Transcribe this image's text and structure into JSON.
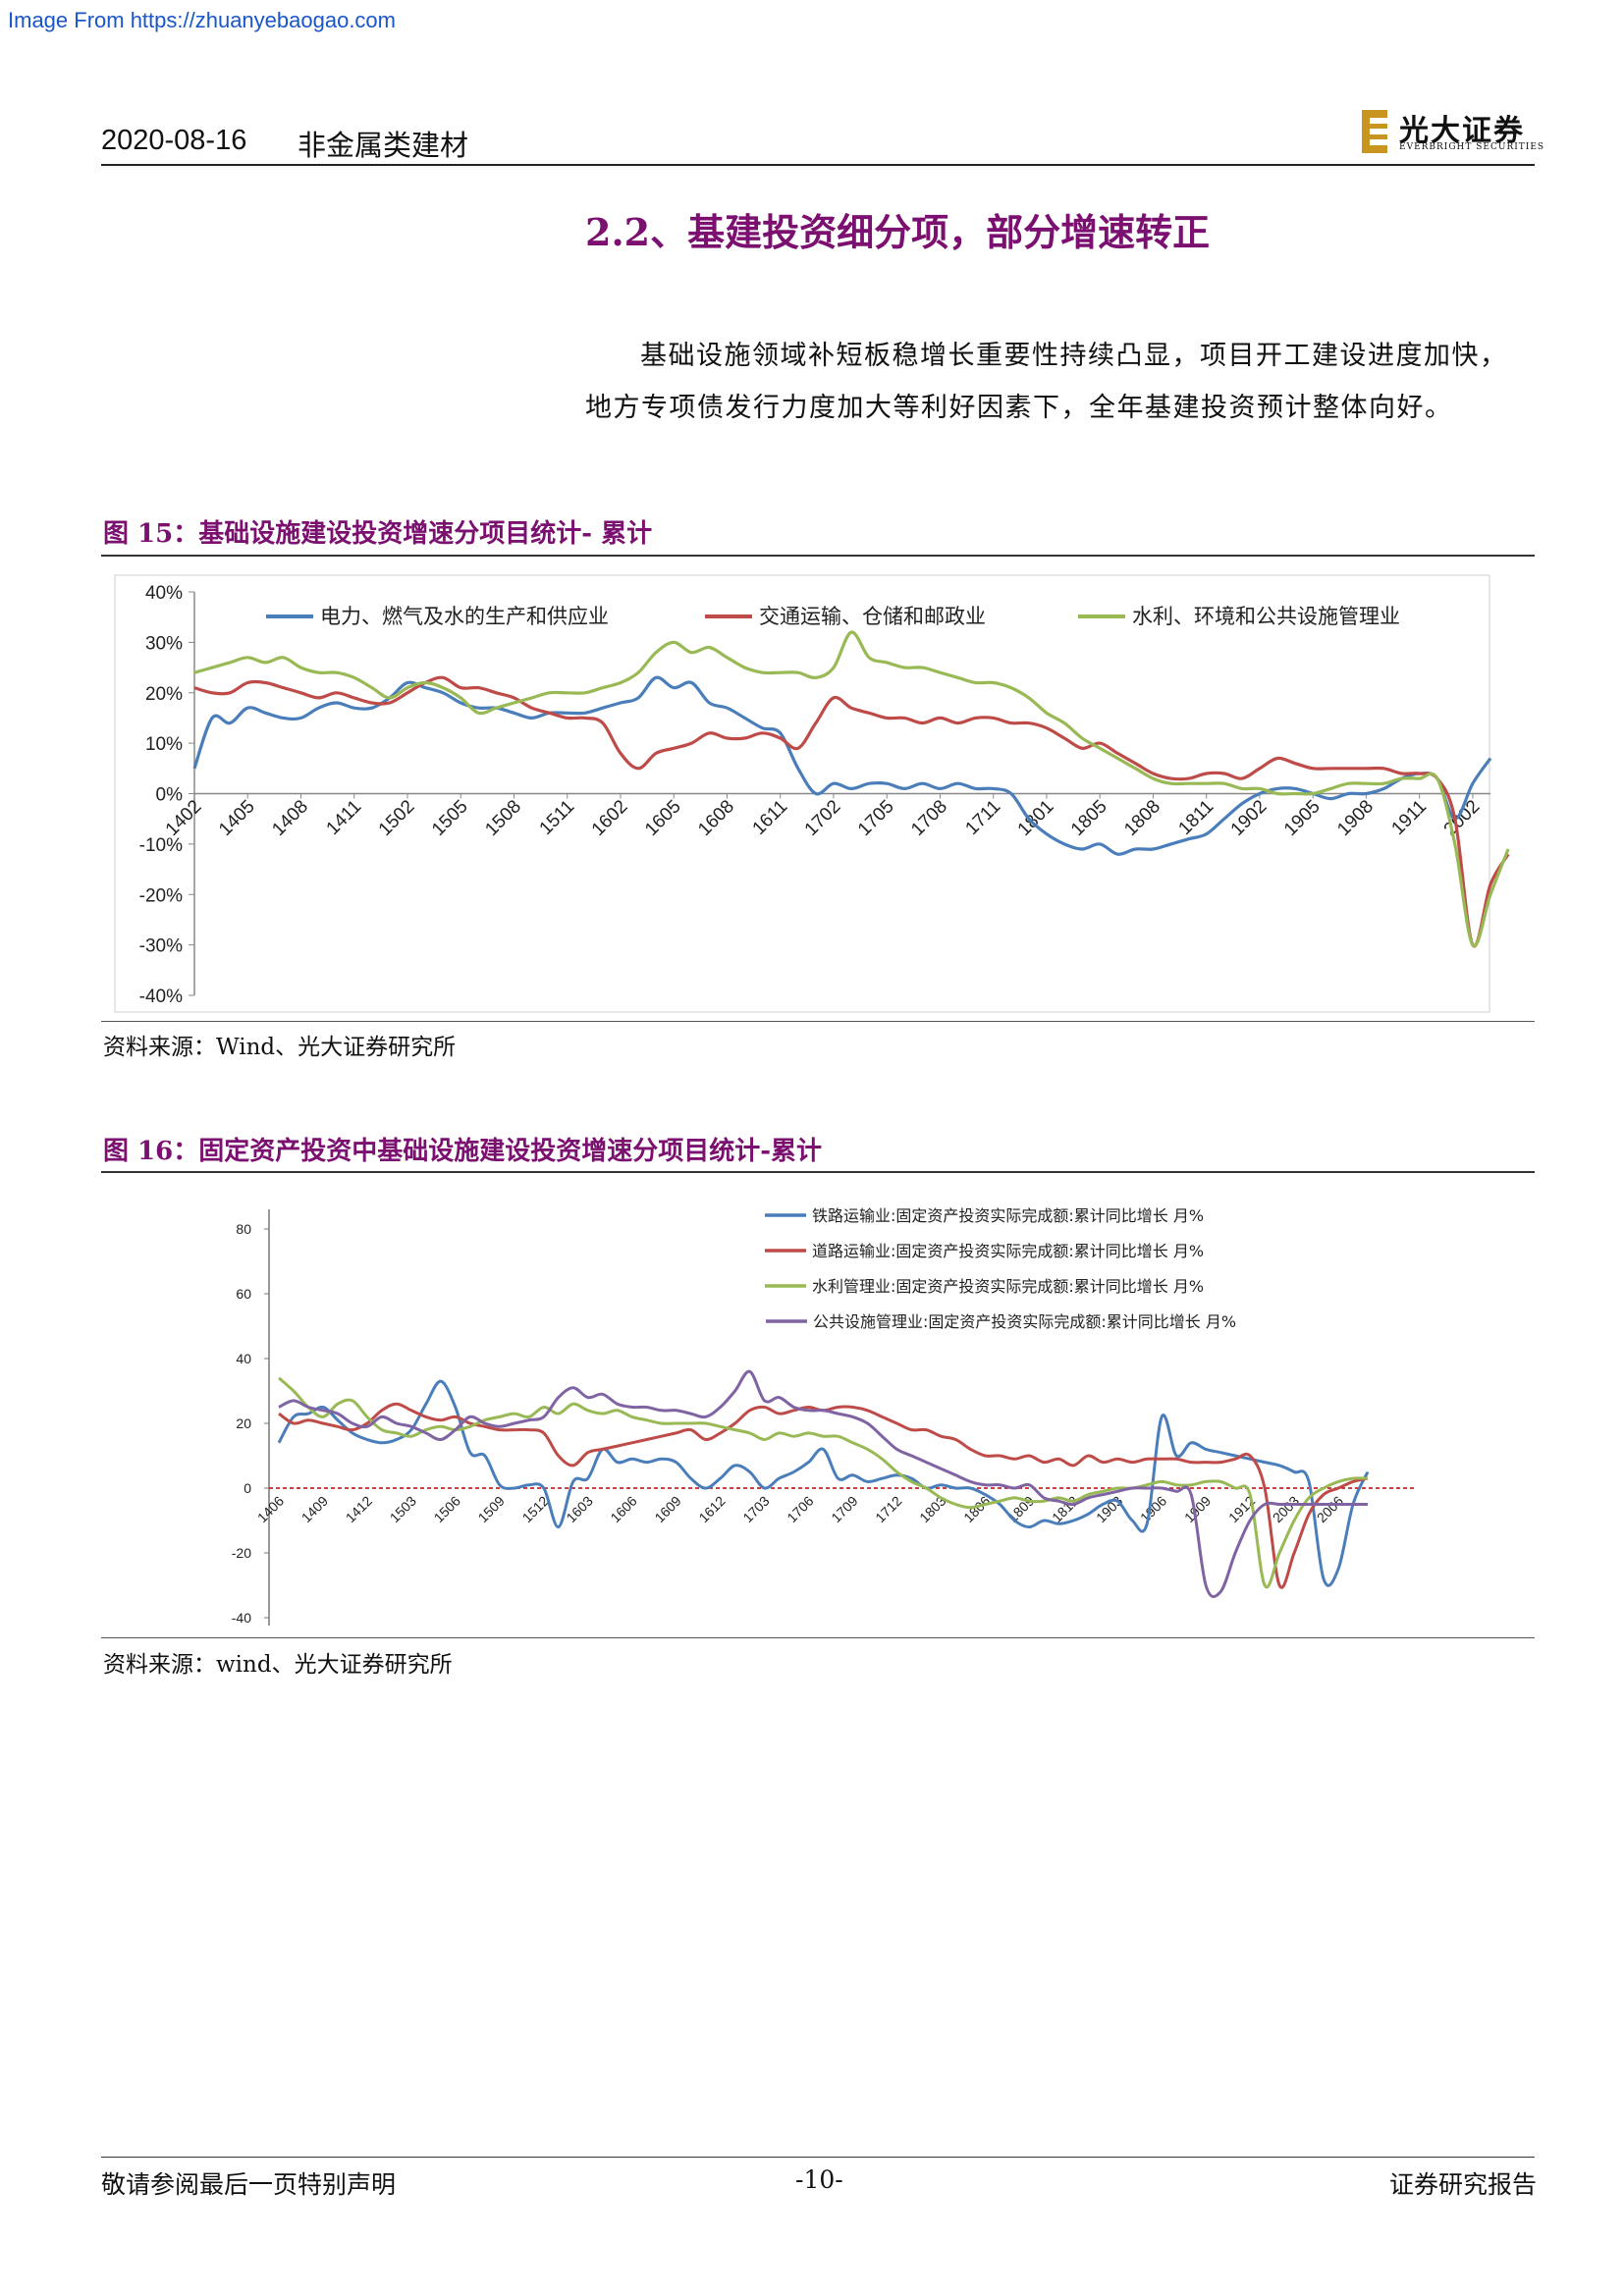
{
  "watermark": "Image From https://zhuanyebaogao.com",
  "header": {
    "date": "2020-08-16",
    "sector": "非金属类建材",
    "logo_cn": "光大证券",
    "logo_en": "EVERBRIGHT SECURITIES",
    "logo_color": "#c8961e"
  },
  "section": {
    "title": "2.2、基建投资细分项，部分增速转正",
    "para_line1": "基础设施领域补短板稳增长重要性持续凸显，项目开工建设进度加快，",
    "para_line2": "地方专项债发行力度加大等利好因素下，全年基建投资预计整体向好。"
  },
  "fig15": {
    "title": "图 15：基础设施建设投资增速分项目统计- 累计",
    "source": "资料来源：Wind、光大证券研究所"
  },
  "fig16": {
    "title": "图 16：固定资产投资中基础设施建设投资增速分项目统计-累计",
    "source": "资料来源：wind、光大证券研究所"
  },
  "footer": {
    "left": "敬请参阅最后一页特别声明",
    "page": "-10-",
    "right": "证券研究报告"
  },
  "chart_data": [
    {
      "type": "line",
      "y_ticks": [
        "40%",
        "30%",
        "20%",
        "10%",
        "0%",
        "-10%",
        "-20%",
        "-30%",
        "-40%"
      ],
      "ylim": [
        -40,
        40
      ],
      "x_ticks": [
        "1402",
        "1405",
        "1408",
        "1411",
        "1502",
        "1505",
        "1508",
        "1511",
        "1602",
        "1605",
        "1608",
        "1611",
        "1702",
        "1705",
        "1708",
        "1711",
        "1801",
        "1805",
        "1808",
        "1811",
        "1902",
        "1905",
        "1908",
        "1911",
        "2002"
      ],
      "legend_position": "top",
      "grid": false,
      "series": [
        {
          "name": "电力、燃气及水的生产和供应业",
          "color": "#4a7ebb",
          "values": [
            5,
            15,
            14,
            17,
            16,
            15,
            15,
            17,
            18,
            17,
            17,
            19,
            22,
            21,
            20,
            18,
            17,
            17,
            16,
            15,
            16,
            16,
            16,
            17,
            18,
            19,
            23,
            21,
            22,
            18,
            17,
            15,
            13,
            12,
            5,
            0,
            2,
            1,
            2,
            2,
            1,
            2,
            1,
            2,
            1,
            1,
            0,
            -5,
            -8,
            -10,
            -11,
            -10,
            -12,
            -11,
            -11,
            -10,
            -9,
            -8,
            -5,
            -2,
            0,
            1,
            1,
            0,
            -1,
            0,
            0,
            1,
            3,
            4,
            3,
            -5,
            2,
            7
          ]
        },
        {
          "name": "交通运输、仓储和邮政业",
          "color": "#be4b48",
          "values": [
            21,
            20,
            20,
            22,
            22,
            21,
            20,
            19,
            20,
            19,
            18,
            18,
            20,
            22,
            23,
            21,
            21,
            20,
            19,
            17,
            16,
            15,
            15,
            14,
            8,
            5,
            8,
            9,
            10,
            12,
            11,
            11,
            12,
            11,
            9,
            14,
            19,
            17,
            16,
            15,
            15,
            14,
            15,
            14,
            15,
            15,
            14,
            14,
            13,
            11,
            9,
            10,
            8,
            6,
            4,
            3,
            3,
            4,
            4,
            3,
            5,
            7,
            6,
            5,
            5,
            5,
            5,
            5,
            4,
            4,
            3,
            -5,
            -30,
            -18,
            -12
          ]
        },
        {
          "name": "水利、环境和公共设施管理业",
          "color": "#98b954",
          "values": [
            24,
            25,
            26,
            27,
            26,
            27,
            25,
            24,
            24,
            23,
            21,
            19,
            21,
            22,
            21,
            19,
            16,
            17,
            18,
            19,
            20,
            20,
            20,
            21,
            22,
            24,
            28,
            30,
            28,
            29,
            27,
            25,
            24,
            24,
            24,
            23,
            25,
            32,
            27,
            26,
            25,
            25,
            24,
            23,
            22,
            22,
            21,
            19,
            16,
            14,
            11,
            9,
            7,
            5,
            3,
            2,
            2,
            2,
            2,
            1,
            1,
            0,
            0,
            0,
            1,
            2,
            2,
            2,
            3,
            3,
            3,
            -10,
            -30,
            -20,
            -11
          ]
        }
      ]
    },
    {
      "type": "line",
      "y_ticks": [
        "80",
        "60",
        "40",
        "20",
        "0",
        "-20",
        "-40"
      ],
      "ylim": [
        -40,
        80
      ],
      "x_ticks": [
        "1406",
        "1409",
        "1412",
        "1503",
        "1506",
        "1509",
        "1512",
        "1603",
        "1606",
        "1609",
        "1612",
        "1703",
        "1706",
        "1709",
        "1712",
        "1803",
        "1806",
        "1809",
        "1812",
        "1903",
        "1906",
        "1909",
        "1912",
        "2003",
        "2006"
      ],
      "legend_position": "top-right",
      "grid": false,
      "zero_line_color": "#c00000",
      "series": [
        {
          "name": "铁路运输业:固定资产投资实际完成额:累计同比增长 月%",
          "color": "#4a7ebb",
          "values": [
            14,
            22,
            23,
            25,
            21,
            17,
            15,
            14,
            15,
            18,
            26,
            33,
            25,
            11,
            10,
            1,
            0,
            1,
            0,
            -12,
            2,
            3,
            12,
            8,
            9,
            8,
            9,
            8,
            3,
            0,
            3,
            7,
            5,
            0,
            3,
            5,
            8,
            12,
            3,
            4,
            2,
            3,
            4,
            3,
            0,
            1,
            0,
            0,
            -2,
            -5,
            -10,
            -12,
            -10,
            -11,
            -10,
            -8,
            -5,
            -4,
            -10,
            -11,
            22,
            10,
            14,
            12,
            11,
            10,
            9,
            8,
            7,
            5,
            2,
            -28,
            -25,
            -5,
            5
          ]
        },
        {
          "name": "道路运输业:固定资产投资实际完成额:累计同比增长 月%",
          "color": "#be4b48",
          "values": [
            23,
            20,
            21,
            20,
            19,
            18,
            20,
            24,
            26,
            24,
            22,
            21,
            22,
            20,
            19,
            18,
            18,
            18,
            17,
            10,
            7,
            11,
            12,
            13,
            14,
            15,
            16,
            17,
            18,
            15,
            17,
            20,
            24,
            25,
            23,
            24,
            25,
            24,
            25,
            25,
            24,
            22,
            20,
            18,
            18,
            16,
            15,
            12,
            10,
            10,
            9,
            10,
            8,
            9,
            7,
            10,
            8,
            9,
            8,
            9,
            9,
            9,
            8,
            8,
            8,
            9,
            10,
            0,
            -30,
            -20,
            -8,
            -2,
            0,
            2,
            3
          ]
        },
        {
          "name": "水利管理业:固定资产投资实际完成额:累计同比增长 月%",
          "color": "#98b954",
          "values": [
            34,
            30,
            25,
            22,
            26,
            27,
            22,
            18,
            17,
            16,
            18,
            19,
            18,
            19,
            21,
            22,
            23,
            22,
            25,
            23,
            26,
            24,
            23,
            24,
            22,
            21,
            20,
            20,
            20,
            20,
            19,
            18,
            17,
            15,
            17,
            16,
            17,
            16,
            16,
            14,
            12,
            9,
            5,
            2,
            0,
            -3,
            -5,
            -6,
            -5,
            -4,
            -3,
            -4,
            -4,
            -3,
            -4,
            -2,
            -1,
            0,
            0,
            1,
            2,
            1,
            1,
            2,
            2,
            0,
            -2,
            -30,
            -20,
            -10,
            -3,
            0,
            2,
            3,
            3
          ]
        },
        {
          "name": "公共设施管理业:固定资产投资实际完成额:累计同比增长 月%",
          "color": "#7f63a2",
          "values": [
            25,
            27,
            25,
            24,
            23,
            20,
            19,
            22,
            20,
            19,
            17,
            15,
            18,
            22,
            20,
            19,
            20,
            21,
            22,
            28,
            31,
            28,
            29,
            26,
            25,
            25,
            24,
            24,
            23,
            22,
            25,
            30,
            36,
            27,
            28,
            25,
            24,
            24,
            23,
            22,
            20,
            16,
            12,
            10,
            8,
            6,
            4,
            2,
            1,
            1,
            0,
            1,
            -3,
            -4,
            -5,
            -3,
            -2,
            -1,
            0,
            0,
            0,
            -1,
            -2,
            -30,
            -32,
            -20,
            -10,
            -5,
            -5,
            -5,
            -5,
            -5,
            -5,
            -5,
            -5
          ]
        }
      ]
    }
  ]
}
